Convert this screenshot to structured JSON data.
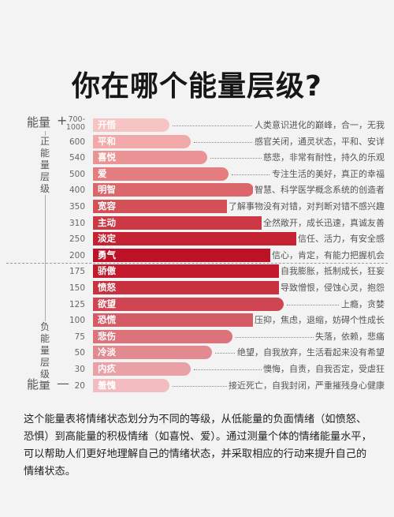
{
  "title": "你在哪个能量层级?",
  "axis": {
    "top_label": "能量",
    "top_sign": "+",
    "bottom_label": "能量",
    "bottom_sign": "—",
    "positive_label": "正能量层级",
    "negative_label": "负能量层级"
  },
  "rows": [
    {
      "level": "700-1000",
      "emotion": "开悟",
      "desc": "人类意识进化的巅峰，合一，无我",
      "value": 0.18,
      "color": "#f7c4c4"
    },
    {
      "level": "600",
      "emotion": "平和",
      "desc": "感官关闭，通灵状态，平和、安详",
      "value": 0.23,
      "color": "#f1a9aa"
    },
    {
      "level": "540",
      "emotion": "喜悦",
      "desc": "慈悲，非常有耐性，持久的乐观",
      "value": 0.27,
      "color": "#ea9395"
    },
    {
      "level": "500",
      "emotion": "爱",
      "desc": "专注生活的美好，真正的幸福",
      "value": 0.32,
      "color": "#e37d80"
    },
    {
      "level": "400",
      "emotion": "明智",
      "desc": "智慧、科学医学概念系统的创造者",
      "value": 0.38,
      "color": "#db666b"
    },
    {
      "level": "350",
      "emotion": "宽容",
      "desc": "了解事物没有对错，对判断对错不感兴趣",
      "value": 0.45,
      "color": "#d45057"
    },
    {
      "level": "310",
      "emotion": "主动",
      "desc": "全然敞开，成长迅速，真诚友善",
      "value": 0.5,
      "color": "#cc3843"
    },
    {
      "level": "250",
      "emotion": "淡定",
      "desc": "信任、活力，有安全感",
      "value": 0.56,
      "color": "#c52333"
    },
    {
      "level": "200",
      "emotion": "勇气",
      "desc": "信心，肯定，有能力把握机会",
      "value": 0.62,
      "color": "#bd1128"
    },
    {
      "level": "175",
      "emotion": "骄傲",
      "desc": "自我膨胀，抵制成长，狂妄",
      "value": 0.56,
      "color": "#c21a2c"
    },
    {
      "level": "150",
      "emotion": "愤怒",
      "desc": "导致憎恨，侵蚀心灵，抱怨",
      "value": 0.5,
      "color": "#c83140"
    },
    {
      "level": "125",
      "emotion": "欲望",
      "desc": "上瘾，贪婪",
      "value": 0.45,
      "color": "#cf4652"
    },
    {
      "level": "100",
      "emotion": "恐慌",
      "desc": "压抑，焦虑，退缩，妨碍个性成长",
      "value": 0.39,
      "color": "#d55c66"
    },
    {
      "level": "75",
      "emotion": "悲伤",
      "desc": "失落，依赖，悲痛",
      "value": 0.33,
      "color": "#dc737b"
    },
    {
      "level": "50",
      "emotion": "冷淡",
      "desc": "绝望，自我放弃，生活看起来没有希望",
      "value": 0.28,
      "color": "#e38a90"
    },
    {
      "level": "30",
      "emotion": "内疚",
      "desc": "懊悔，自责，自我否定，受虐狂",
      "value": 0.23,
      "color": "#eaa1a6"
    },
    {
      "level": "20",
      "emotion": "羞愧",
      "desc": "接近死亡，自我封闭，严重摧残身心健康",
      "value": 0.18,
      "color": "#f2bcc0"
    }
  ],
  "footer": "这个能量表将情绪状态划分为不同的等级，从低能量的负面情绪（如愤怒、恐惧）到高能量的积极情绪（如喜悦、爱）。通过测量个体的情绪能量水平，可以帮助人们更好地理解自己的情绪状态，并采取相应的行动来提升自己的情绪状态。"
}
